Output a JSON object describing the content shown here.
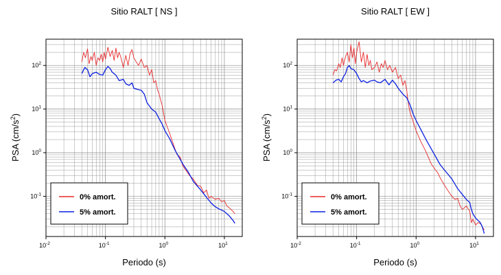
{
  "chart_data": [
    {
      "type": "line",
      "title": "Sitio RALT [ NS ]",
      "xlabel": "Periodo (s)",
      "ylabel_main": "PSA (cm/s",
      "ylabel_sup": "2",
      "ylabel_close": ")",
      "xscale": "log",
      "yscale": "log",
      "xlim": [
        0.01,
        20
      ],
      "ylim": [
        0.012,
        400
      ],
      "grid": true,
      "xticks": [
        {
          "value": 0.01,
          "base": "10",
          "exp": "-2"
        },
        {
          "value": 0.1,
          "base": "10",
          "exp": "-1"
        },
        {
          "value": 1,
          "base": "10",
          "exp": "0"
        },
        {
          "value": 10,
          "base": "10",
          "exp": "1"
        }
      ],
      "yticks": [
        {
          "value": 0.1,
          "base": "10",
          "exp": "-1"
        },
        {
          "value": 1,
          "base": "10",
          "exp": "0"
        },
        {
          "value": 10,
          "base": "10",
          "exp": "1"
        },
        {
          "value": 100,
          "base": "10",
          "exp": "2"
        }
      ],
      "legend_position": "bottom-left",
      "series": [
        {
          "name": "0% amort.",
          "color": "#e8282a",
          "x": [
            0.04,
            0.043,
            0.046,
            0.05,
            0.053,
            0.057,
            0.06,
            0.065,
            0.07,
            0.075,
            0.08,
            0.085,
            0.09,
            0.095,
            0.1,
            0.11,
            0.12,
            0.13,
            0.14,
            0.15,
            0.16,
            0.17,
            0.18,
            0.2,
            0.22,
            0.24,
            0.26,
            0.28,
            0.3,
            0.33,
            0.36,
            0.4,
            0.45,
            0.5,
            0.55,
            0.6,
            0.65,
            0.7,
            0.75,
            0.8,
            0.9,
            1.0,
            1.2,
            1.4,
            1.6,
            1.8,
            2.0,
            2.3,
            2.6,
            3.0,
            3.5,
            4.0,
            4.5,
            5.0,
            5.5,
            6.0,
            7.0,
            8.0,
            9.0,
            10.0,
            11.0,
            12.0,
            13.0,
            14.0,
            15.0
          ],
          "y": [
            120,
            200,
            150,
            240,
            110,
            160,
            130,
            200,
            100,
            150,
            130,
            180,
            120,
            200,
            140,
            260,
            160,
            220,
            130,
            250,
            150,
            200,
            160,
            90,
            170,
            100,
            190,
            230,
            150,
            120,
            100,
            140,
            90,
            100,
            60,
            80,
            40,
            45,
            28,
            22,
            12,
            5.5,
            2.8,
            1.5,
            0.9,
            0.8,
            0.5,
            0.38,
            0.3,
            0.25,
            0.18,
            0.17,
            0.12,
            0.14,
            0.09,
            0.1,
            0.085,
            0.09,
            0.075,
            0.08,
            0.06,
            0.055,
            0.05,
            0.045,
            0.04
          ]
        },
        {
          "name": "5% amort.",
          "color": "#0a1ee0",
          "x": [
            0.04,
            0.045,
            0.05,
            0.055,
            0.06,
            0.07,
            0.08,
            0.09,
            0.1,
            0.11,
            0.12,
            0.13,
            0.15,
            0.17,
            0.2,
            0.22,
            0.25,
            0.28,
            0.3,
            0.35,
            0.4,
            0.45,
            0.5,
            0.6,
            0.7,
            0.8,
            0.9,
            1.0,
            1.2,
            1.5,
            2.0,
            2.5,
            3.0,
            4.0,
            5.0,
            6.0,
            7.0,
            8.0,
            10.0,
            12.0,
            14.0,
            15.0
          ],
          "y": [
            65,
            90,
            80,
            55,
            65,
            70,
            62,
            60,
            80,
            95,
            85,
            70,
            60,
            45,
            48,
            38,
            35,
            40,
            30,
            28,
            27,
            22,
            14,
            10,
            8.5,
            6,
            4.5,
            3.2,
            2.1,
            1.1,
            0.55,
            0.35,
            0.22,
            0.14,
            0.095,
            0.07,
            0.058,
            0.052,
            0.045,
            0.036,
            0.028,
            0.024
          ]
        }
      ]
    },
    {
      "type": "line",
      "title": "Sitio RALT [ EW ]",
      "xlabel": "Periodo (s)",
      "ylabel_main": "PSA (cm/s",
      "ylabel_sup": "2",
      "ylabel_close": ")",
      "xscale": "log",
      "yscale": "log",
      "xlim": [
        0.01,
        20
      ],
      "ylim": [
        0.012,
        400
      ],
      "grid": true,
      "xticks": [
        {
          "value": 0.01,
          "base": "10",
          "exp": "-2"
        },
        {
          "value": 0.1,
          "base": "10",
          "exp": "-1"
        },
        {
          "value": 1,
          "base": "10",
          "exp": "0"
        },
        {
          "value": 10,
          "base": "10",
          "exp": "1"
        }
      ],
      "yticks": [
        {
          "value": 0.1,
          "base": "10",
          "exp": "-1"
        },
        {
          "value": 1,
          "base": "10",
          "exp": "0"
        },
        {
          "value": 10,
          "base": "10",
          "exp": "1"
        },
        {
          "value": 100,
          "base": "10",
          "exp": "2"
        }
      ],
      "legend_position": "bottom-left",
      "series": [
        {
          "name": "0% amort.",
          "color": "#e8282a",
          "x": [
            0.04,
            0.043,
            0.046,
            0.05,
            0.053,
            0.057,
            0.06,
            0.065,
            0.07,
            0.075,
            0.08,
            0.085,
            0.09,
            0.095,
            0.1,
            0.11,
            0.12,
            0.13,
            0.14,
            0.15,
            0.16,
            0.17,
            0.18,
            0.2,
            0.22,
            0.24,
            0.26,
            0.28,
            0.3,
            0.33,
            0.36,
            0.4,
            0.45,
            0.5,
            0.55,
            0.6,
            0.65,
            0.7,
            0.75,
            0.8,
            0.9,
            1.0,
            1.2,
            1.4,
            1.6,
            1.8,
            2.0,
            2.3,
            2.6,
            3.0,
            3.5,
            4.0,
            4.5,
            5.0,
            5.5,
            6.0,
            7.0,
            8.0,
            8.5,
            9.0,
            10.0,
            11.0,
            12.0,
            13.0,
            14.0
          ],
          "y": [
            60,
            80,
            75,
            110,
            90,
            150,
            100,
            160,
            200,
            120,
            300,
            150,
            250,
            110,
            200,
            350,
            120,
            200,
            90,
            180,
            100,
            130,
            80,
            90,
            120,
            70,
            110,
            90,
            130,
            80,
            100,
            70,
            90,
            50,
            60,
            35,
            45,
            25,
            12,
            8,
            5,
            3.2,
            1.8,
            1.2,
            0.8,
            0.55,
            0.45,
            0.35,
            0.25,
            0.18,
            0.13,
            0.1,
            0.085,
            0.09,
            0.06,
            0.05,
            0.06,
            0.045,
            0.025,
            0.03,
            0.022,
            0.025,
            0.024,
            0.02,
            0.017
          ]
        },
        {
          "name": "5% amort.",
          "color": "#0a1ee0",
          "x": [
            0.04,
            0.045,
            0.05,
            0.055,
            0.06,
            0.065,
            0.07,
            0.075,
            0.08,
            0.09,
            0.1,
            0.11,
            0.12,
            0.13,
            0.15,
            0.17,
            0.2,
            0.22,
            0.25,
            0.3,
            0.35,
            0.4,
            0.45,
            0.5,
            0.6,
            0.7,
            0.8,
            0.9,
            1.0,
            1.2,
            1.5,
            2.0,
            2.5,
            3.0,
            4.0,
            5.0,
            6.0,
            7.0,
            8.0,
            8.5,
            9.0,
            10.0,
            11.0,
            12.0,
            13.0,
            14.0
          ],
          "y": [
            40,
            46,
            48,
            42,
            55,
            65,
            90,
            100,
            85,
            80,
            65,
            50,
            42,
            45,
            40,
            44,
            46,
            42,
            40,
            48,
            36,
            46,
            38,
            30,
            22,
            18,
            12,
            7.5,
            5.5,
            3.4,
            1.9,
            0.95,
            0.55,
            0.4,
            0.25,
            0.15,
            0.11,
            0.085,
            0.072,
            0.05,
            0.04,
            0.032,
            0.028,
            0.025,
            0.02,
            0.014
          ]
        }
      ]
    }
  ]
}
